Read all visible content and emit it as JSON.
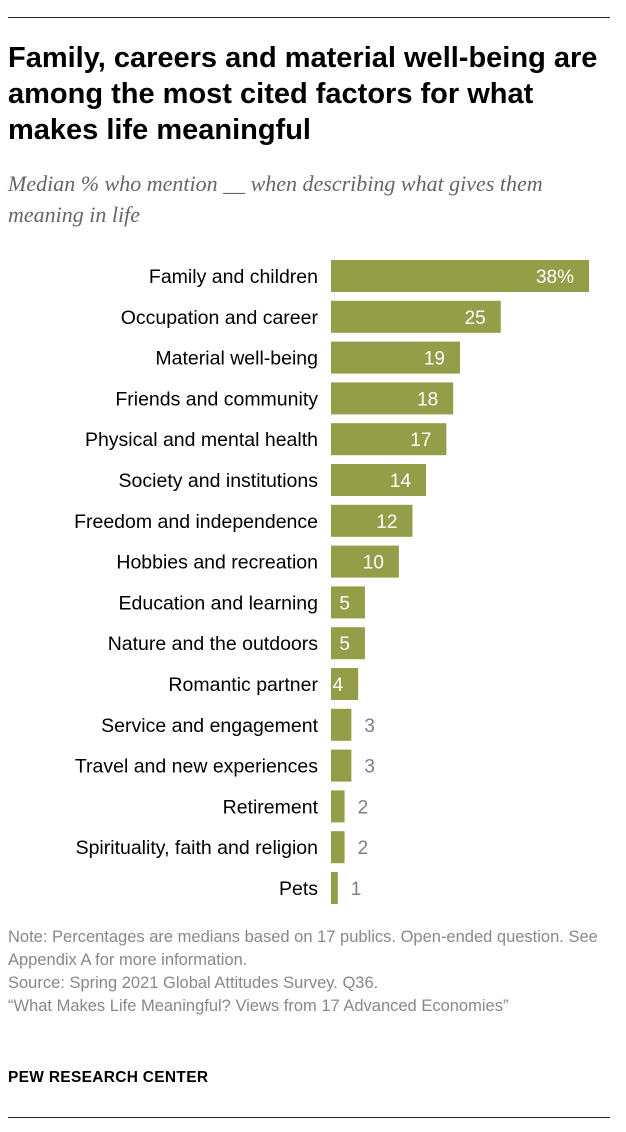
{
  "title": "Family, careers and material well-being are among the most cited factors for what makes life meaningful",
  "subtitle": "Median % who mention __ when describing what gives them meaning in life",
  "chart_data": {
    "type": "bar",
    "orientation": "horizontal",
    "categories": [
      "Family and children",
      "Occupation and career",
      "Material well-being",
      "Friends and community",
      "Physical and mental health",
      "Society and institutions",
      "Freedom and independence",
      "Hobbies and recreation",
      "Education and learning",
      "Nature and the outdoors",
      "Romantic partner",
      "Service and engagement",
      "Travel and new experiences",
      "Retirement",
      "Spirituality, faith and religion",
      "Pets"
    ],
    "values": [
      38,
      25,
      19,
      18,
      17,
      14,
      12,
      10,
      5,
      5,
      4,
      3,
      3,
      2,
      2,
      1
    ],
    "value_labels": [
      "38%",
      "25",
      "19",
      "18",
      "17",
      "14",
      "12",
      "10",
      "5",
      "5",
      "4",
      "3",
      "3",
      "2",
      "2",
      "1"
    ],
    "unit": "%",
    "bar_color": "#949d48",
    "grid": false,
    "legend": "none"
  },
  "notes": {
    "note": "Note: Percentages are medians based on 17 publics. Open-ended question. See Appendix A for more information.",
    "source": "Source: Spring 2021 Global Attitudes Survey. Q36.",
    "report": "“What Makes Life Meaningful? Views from 17 Advanced Economies”"
  },
  "brand": "PEW RESEARCH CENTER"
}
